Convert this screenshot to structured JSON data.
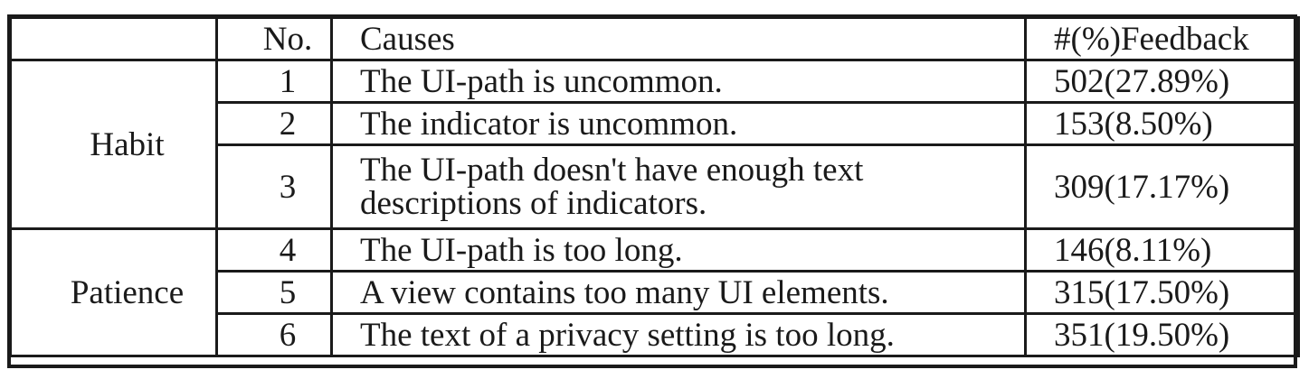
{
  "table": {
    "headers": {
      "group": "",
      "no": "No.",
      "causes": "Causes",
      "feedback": "#(%)Feedback"
    },
    "groups": [
      {
        "label": "Habit"
      },
      {
        "label": "Patience"
      }
    ],
    "rows": [
      {
        "no": "1",
        "cause": "The UI-path is uncommon.",
        "feedback": "502(27.89%)"
      },
      {
        "no": "2",
        "cause": "The indicator is uncommon.",
        "feedback": "153(8.50%)"
      },
      {
        "no": "3",
        "cause": "The UI-path doesn't have enough text descriptions of indicators.",
        "feedback": "309(17.17%)"
      },
      {
        "no": "4",
        "cause": "The UI-path is too long.",
        "feedback": "146(8.11%)"
      },
      {
        "no": "5",
        "cause": "A view contains too many UI elements.",
        "feedback": "315(17.50%)"
      },
      {
        "no": "6",
        "cause": "The text of a privacy setting is too long.",
        "feedback": "351(19.50%)"
      }
    ]
  }
}
